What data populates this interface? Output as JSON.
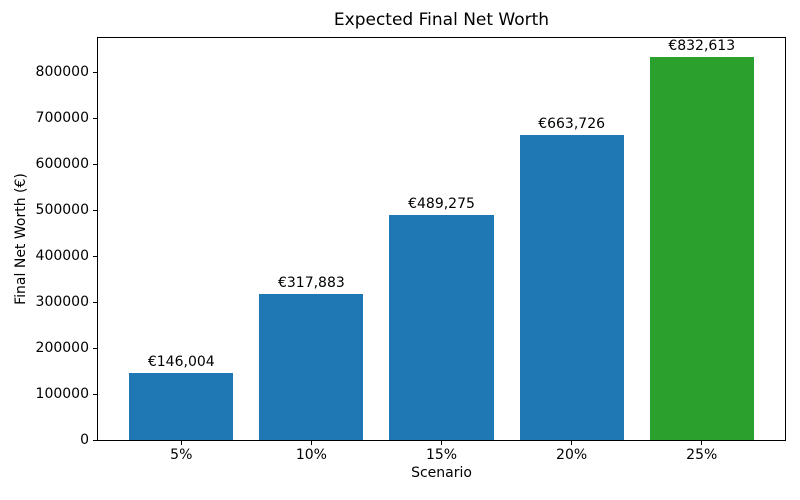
{
  "chart_data": {
    "type": "bar",
    "title": "Expected Final Net Worth",
    "xlabel": "Scenario",
    "ylabel": "Final Net Worth (€)",
    "categories": [
      "5%",
      "10%",
      "15%",
      "20%",
      "25%"
    ],
    "values": [
      146004,
      317883,
      489275,
      663726,
      832613
    ],
    "bar_labels": [
      "€146,004",
      "€317,883",
      "€489,275",
      "€663,726",
      "€832,613"
    ],
    "bar_colors": [
      "#1f77b4",
      "#1f77b4",
      "#1f77b4",
      "#1f77b4",
      "#2ca02c"
    ],
    "yticks": [
      0,
      100000,
      200000,
      300000,
      400000,
      500000,
      600000,
      700000,
      800000
    ],
    "ylim": [
      0,
      874244
    ],
    "grid": false,
    "legend_position": "none",
    "background_color": "#ffffff",
    "text_color": "#000000"
  }
}
